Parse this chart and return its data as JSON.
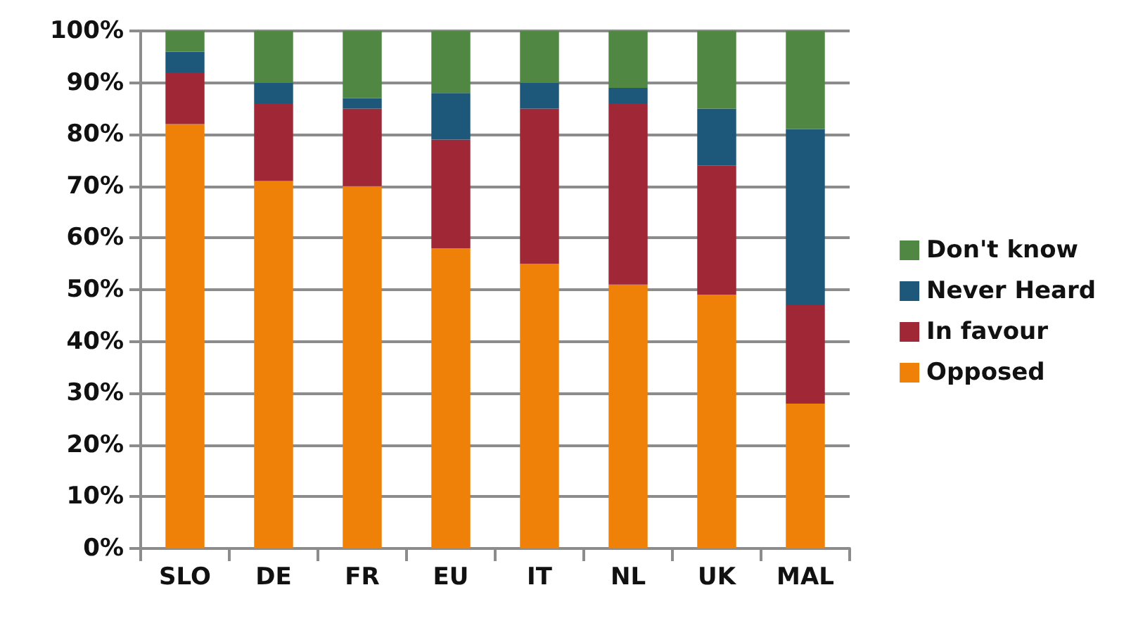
{
  "chart_data": {
    "type": "bar",
    "stacked": true,
    "categories": [
      "SLO",
      "DE",
      "FR",
      "EU",
      "IT",
      "NL",
      "UK",
      "MAL"
    ],
    "series": [
      {
        "name": "Opposed",
        "color": "#f08108",
        "values": [
          82,
          71,
          70,
          58,
          55,
          51,
          49,
          28
        ]
      },
      {
        "name": "In favour",
        "color": "#a02836",
        "values": [
          10,
          15,
          15,
          21,
          30,
          35,
          25,
          19
        ]
      },
      {
        "name": "Never Heard",
        "color": "#1d587b",
        "values": [
          4,
          4,
          2,
          9,
          5,
          3,
          11,
          34
        ]
      },
      {
        "name": "Don't know",
        "color": "#508843",
        "values": [
          4,
          10,
          13,
          12,
          10,
          11,
          15,
          19
        ]
      }
    ],
    "ylim": [
      0,
      100
    ],
    "yticks": [
      {
        "value": 0,
        "label": "0%"
      },
      {
        "value": 10,
        "label": "10%"
      },
      {
        "value": 20,
        "label": "20%"
      },
      {
        "value": 30,
        "label": "30%"
      },
      {
        "value": 40,
        "label": "40%"
      },
      {
        "value": 50,
        "label": "50%"
      },
      {
        "value": 60,
        "label": "60%"
      },
      {
        "value": 70,
        "label": "70%"
      },
      {
        "value": 80,
        "label": "80%"
      },
      {
        "value": 90,
        "label": "90%"
      },
      {
        "value": 100,
        "label": "100%"
      }
    ],
    "grid": "y",
    "legend": "right"
  }
}
